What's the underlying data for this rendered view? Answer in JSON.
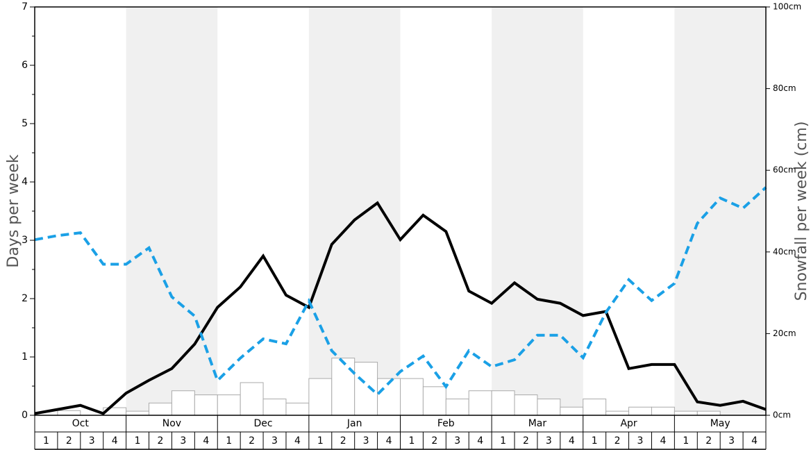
{
  "chart_data": {
    "type": "line",
    "y_label": "Days per week",
    "y2_label": "Snowfall per week (cm)",
    "months": [
      "Oct",
      "Nov",
      "Dec",
      "Jan",
      "Feb",
      "Mar",
      "Apr",
      "May"
    ],
    "weeks": [
      "1",
      "2",
      "3",
      "4"
    ],
    "ylim": [
      0,
      7
    ],
    "yticks": [
      0,
      1,
      2,
      3,
      4,
      5,
      6,
      7
    ],
    "y2lim": [
      0,
      100
    ],
    "y2ticks": [
      {
        "value": 0,
        "label": "0cm"
      },
      {
        "value": 20,
        "label": "20cm"
      },
      {
        "value": 40,
        "label": "40cm"
      },
      {
        "value": 60,
        "label": "60cm"
      },
      {
        "value": 80,
        "label": "80cm"
      },
      {
        "value": 100,
        "label": "100cm"
      }
    ],
    "series": [
      {
        "type": "bar",
        "color": "#ffffff",
        "values": [
          0,
          0.08,
          0,
          0.13,
          0.07,
          0.21,
          0.42,
          0.35,
          0.35,
          0.56,
          0.28,
          0.21,
          0.63,
          0.98,
          0.91,
          0.63,
          0.63,
          0.49,
          0.28,
          0.42,
          0.42,
          0.35,
          0.28,
          0.14,
          0.28,
          0.07,
          0.14,
          0.14,
          0.07,
          0.07,
          0,
          0
        ]
      },
      {
        "type": "line",
        "color": "#000000",
        "values": [
          0.03,
          0.1,
          0.17,
          0.03,
          0.38,
          0.6,
          0.8,
          1.22,
          1.85,
          2.2,
          2.73,
          2.06,
          1.85,
          2.93,
          3.35,
          3.64,
          3.01,
          3.43,
          3.15,
          2.13,
          1.92,
          2.27,
          1.99,
          1.92,
          1.71,
          1.78,
          0.8,
          0.87,
          0.87,
          0.23,
          0.17,
          0.24,
          0.1
        ]
      },
      {
        "type": "line",
        "color": "#1aa0e6",
        "axis": "y2",
        "dashed": true,
        "values": [
          43,
          44,
          44.7,
          37,
          37,
          41,
          29,
          24.3,
          8.5,
          14,
          18.7,
          17.5,
          28,
          15.8,
          10.2,
          5.1,
          10.7,
          14.5,
          7,
          15.8,
          11.9,
          13.6,
          19.6,
          19.6,
          14.1,
          25.2,
          33.2,
          28.1,
          32.3,
          47,
          53.2,
          50.7,
          55.8
        ]
      }
    ]
  }
}
